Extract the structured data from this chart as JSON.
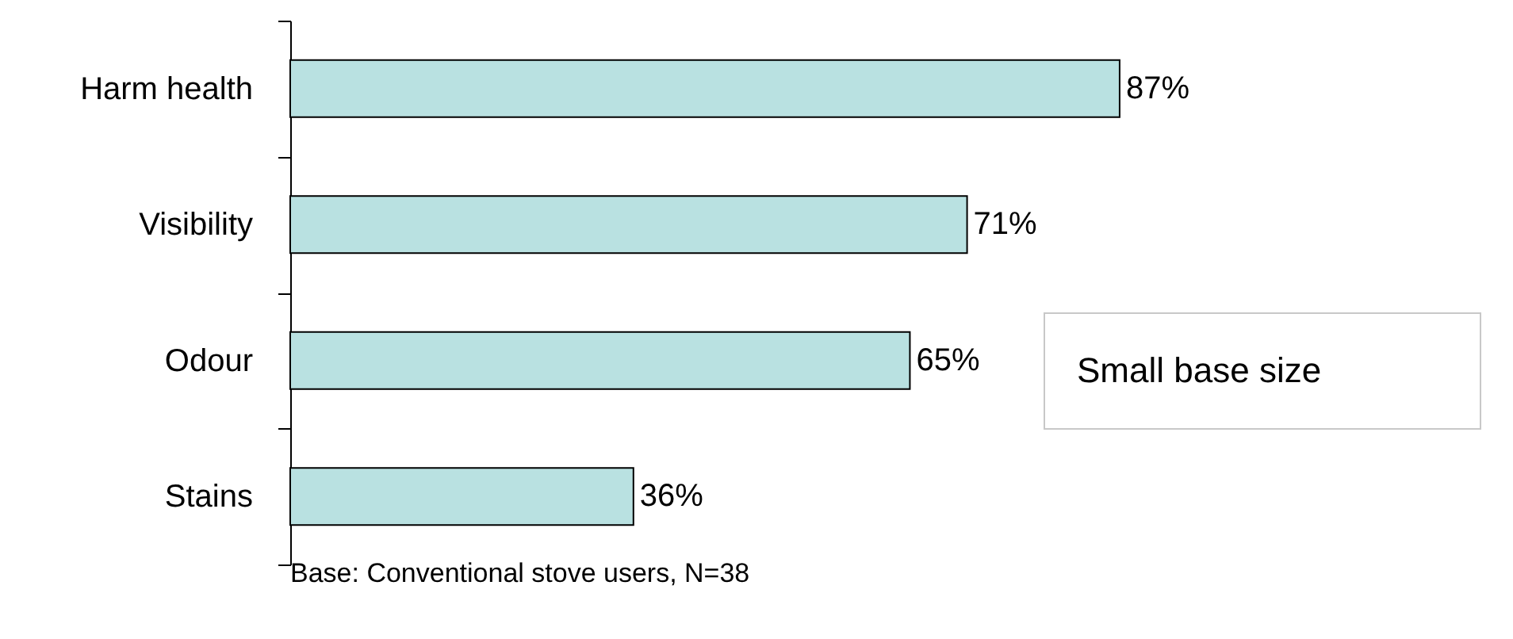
{
  "chart_data": {
    "type": "bar",
    "orientation": "horizontal",
    "categories": [
      "Harm health",
      "Visibility",
      "Odour",
      "Stains"
    ],
    "values": [
      87,
      71,
      65,
      36
    ],
    "value_labels": [
      "87%",
      "71%",
      "65%",
      "36%"
    ],
    "color": "#b9e1e1",
    "grid": false,
    "tick_labels": "y",
    "annotations": [
      "Small base size",
      "Base: Conventional stove users, N=38"
    ]
  }
}
